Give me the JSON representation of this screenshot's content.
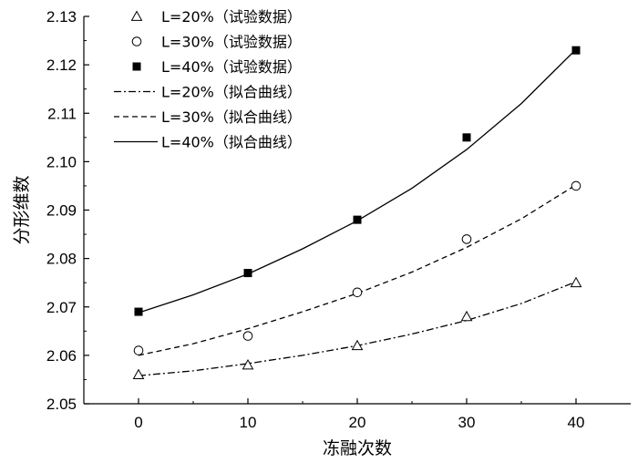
{
  "chart_data": {
    "type": "scatter",
    "xlabel": "冻融次数",
    "ylabel": "分形维数",
    "xlim": [
      -5,
      45
    ],
    "ylim": [
      2.05,
      2.13
    ],
    "x_ticks": [
      0,
      10,
      20,
      30,
      40
    ],
    "x_tick_labels": [
      "0",
      "10",
      "20",
      "30",
      "40"
    ],
    "y_ticks": [
      2.05,
      2.06,
      2.07,
      2.08,
      2.09,
      2.1,
      2.11,
      2.12,
      2.13
    ],
    "y_tick_labels": [
      "2.05",
      "2.06",
      "2.07",
      "2.08",
      "2.09",
      "2.10",
      "2.11",
      "2.12",
      "2.13"
    ],
    "grid": false,
    "legend_position": "top-left",
    "series": [
      {
        "name": "L=20%（试验数据）",
        "kind": "points",
        "marker": "triangle-open",
        "x": [
          0,
          10,
          20,
          30,
          40
        ],
        "y": [
          2.056,
          2.058,
          2.062,
          2.068,
          2.075
        ]
      },
      {
        "name": "L=30%（试验数据）",
        "kind": "points",
        "marker": "circle-open",
        "x": [
          0,
          10,
          20,
          30,
          40
        ],
        "y": [
          2.061,
          2.064,
          2.073,
          2.084,
          2.095
        ]
      },
      {
        "name": "L=40%（试验数据）",
        "kind": "points",
        "marker": "square-filled",
        "x": [
          0,
          10,
          20,
          30,
          40
        ],
        "y": [
          2.069,
          2.077,
          2.088,
          2.105,
          2.123
        ]
      },
      {
        "name": "L=20%（拟合曲线）",
        "kind": "line",
        "dash": "dashdot",
        "x": [
          0,
          5,
          10,
          15,
          20,
          25,
          30,
          35,
          40
        ],
        "y": [
          2.0558,
          2.0568,
          2.0583,
          2.06,
          2.062,
          2.0644,
          2.0672,
          2.0707,
          2.0752
        ]
      },
      {
        "name": "L=30%（拟合曲线）",
        "kind": "line",
        "dash": "dashed",
        "x": [
          0,
          5,
          10,
          15,
          20,
          25,
          30,
          35,
          40
        ],
        "y": [
          2.06,
          2.0624,
          2.0655,
          2.069,
          2.0728,
          2.0772,
          2.0823,
          2.0882,
          2.0952
        ]
      },
      {
        "name": "L=40%（拟合曲线）",
        "kind": "line",
        "dash": "solid",
        "x": [
          0,
          5,
          10,
          15,
          20,
          25,
          30,
          35,
          40
        ],
        "y": [
          2.0688,
          2.0725,
          2.0768,
          2.082,
          2.0878,
          2.0945,
          2.1025,
          2.112,
          2.1232
        ]
      }
    ]
  }
}
